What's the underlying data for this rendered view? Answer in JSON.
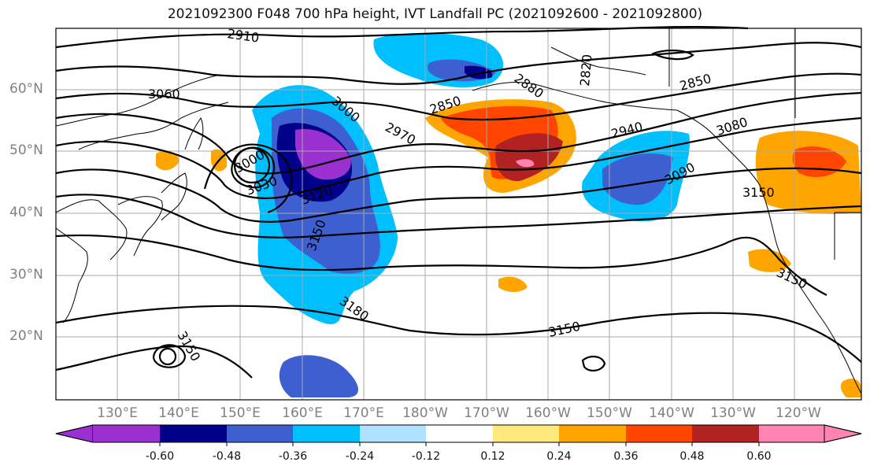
{
  "title": "2021092300 F048 700 hPa height, IVT Landfall PC (2021092600 - 2021092800)",
  "lat_labels": [
    "60°N",
    "50°N",
    "40°N",
    "30°N",
    "20°N"
  ],
  "lon_labels": [
    "130°E",
    "140°E",
    "150°E",
    "160°E",
    "170°E",
    "180°W",
    "170°W",
    "160°W",
    "150°W",
    "140°W",
    "130°W",
    "120°W"
  ],
  "contour_labels": [
    "2910",
    "3060",
    "3000",
    "2820",
    "2880",
    "2850",
    "2850",
    "2970",
    "2940",
    "3080",
    "3000",
    "3030",
    "3120",
    "3090",
    "3150",
    "3150",
    "3150",
    "3180",
    "3150",
    "3150"
  ],
  "colorbar": {
    "ticks": [
      "-0.60",
      "-0.48",
      "-0.36",
      "-0.24",
      "-0.12",
      "0.12",
      "0.24",
      "0.36",
      "0.48",
      "0.60"
    ],
    "colors": [
      "#9b30d0",
      "#00008b",
      "#3d5fcf",
      "#00bfff",
      "#b0e2ff",
      "#ffffff",
      "#ffe97f",
      "#ffa500",
      "#ff4500",
      "#b22222",
      "#ff85b0"
    ]
  }
}
